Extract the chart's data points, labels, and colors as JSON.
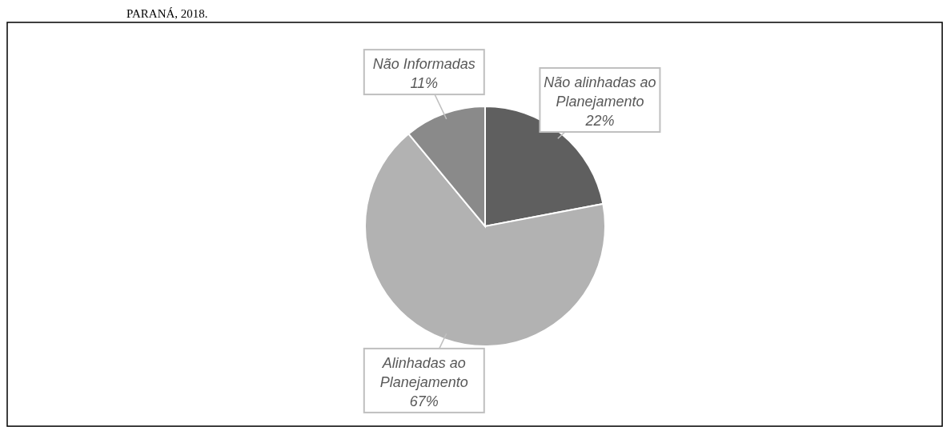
{
  "chart_data": {
    "type": "pie",
    "title": "PARANÁ, 2018.",
    "categories": [
      "Não alinhadas ao Planejamento",
      "Alinhadas ao Planejamento",
      "Não Informadas"
    ],
    "values": [
      22,
      67,
      11
    ],
    "colors": [
      "#5f5f5f",
      "#b2b2b2",
      "#8a8a8a"
    ],
    "value_labels": [
      "22%",
      "67%",
      "11%"
    ]
  }
}
